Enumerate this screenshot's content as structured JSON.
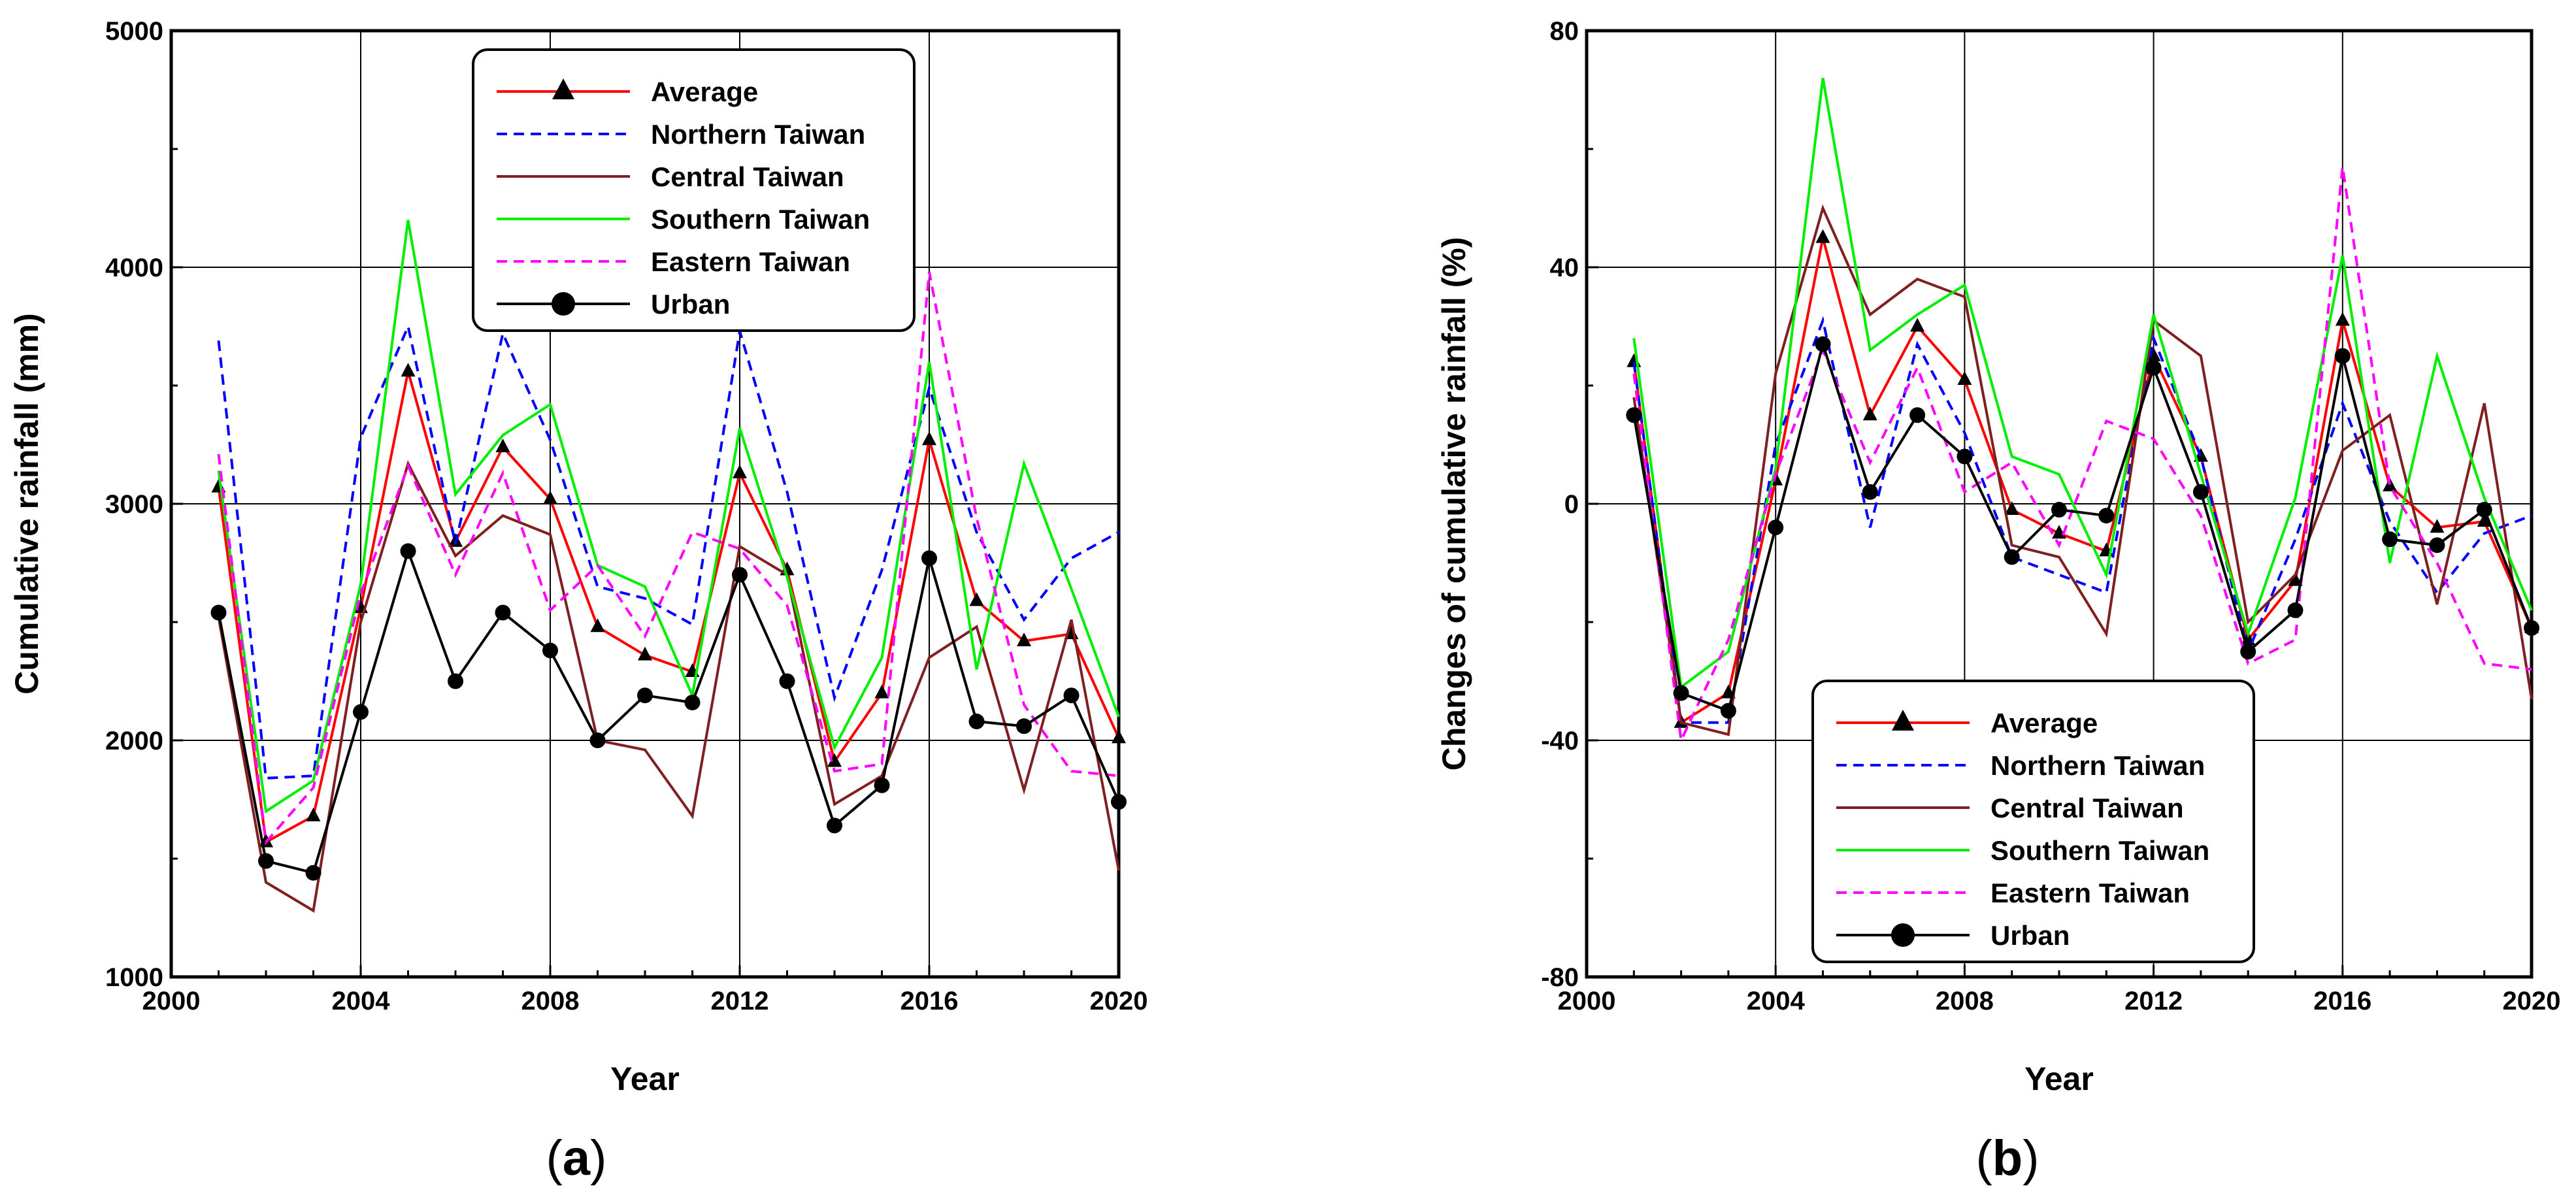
{
  "panels": [
    {
      "id": "a",
      "caption": "(a)",
      "caption_letter": "a",
      "caption_open": "(",
      "caption_close": ")",
      "xlabel": "Year",
      "ylabel": "Cumulative rainfall (mm)",
      "x_ticks": [
        "2000",
        "2004",
        "2008",
        "2012",
        "2016",
        "2020"
      ],
      "y_ticks": [
        "1000",
        "2000",
        "3000",
        "4000",
        "5000"
      ]
    },
    {
      "id": "b",
      "caption": "(b)",
      "caption_letter": "b",
      "caption_open": "(",
      "caption_close": ")",
      "xlabel": "Year",
      "ylabel": "Changes of cumulative rainfall (%)",
      "x_ticks": [
        "2000",
        "2004",
        "2008",
        "2012",
        "2016",
        "2020"
      ],
      "y_ticks": [
        "-80",
        "-40",
        "0",
        "40",
        "80"
      ]
    }
  ],
  "colors": {
    "average": "#ff0000",
    "northern": "#0000ff",
    "central": "#7f1f1f",
    "southern": "#00ee00",
    "eastern": "#ff00ff",
    "urban": "#000000"
  },
  "chart_data": [
    {
      "type": "line",
      "panel": "a",
      "title": "",
      "xlabel": "Year",
      "ylabel": "Cumulative rainfall (mm)",
      "xlim": [
        2000,
        2020
      ],
      "ylim": [
        1000,
        5000
      ],
      "x": [
        2001,
        2002,
        2003,
        2004,
        2005,
        2006,
        2007,
        2008,
        2009,
        2010,
        2011,
        2012,
        2013,
        2014,
        2015,
        2016,
        2017,
        2018,
        2019,
        2020
      ],
      "legend_position": "top-center",
      "series": [
        {
          "key": "average",
          "name": "Average",
          "style": "solid",
          "marker": "triangle",
          "values": [
            3070,
            1570,
            1680,
            2560,
            3560,
            2840,
            3240,
            3020,
            2480,
            2360,
            2290,
            3130,
            2720,
            1910,
            2200,
            3270,
            2590,
            2420,
            2450,
            2010
          ]
        },
        {
          "key": "northern",
          "name": "Northern Taiwan",
          "style": "dashed",
          "marker": "none",
          "values": [
            3690,
            1840,
            1850,
            3280,
            3750,
            2830,
            3720,
            3270,
            2650,
            2600,
            2490,
            3730,
            3050,
            2180,
            2720,
            3490,
            2880,
            2510,
            2770,
            2880
          ]
        },
        {
          "key": "central",
          "name": "Central Taiwan",
          "style": "solid",
          "marker": "none",
          "values": [
            2520,
            1400,
            1280,
            2500,
            3170,
            2780,
            2950,
            2870,
            2000,
            1960,
            1680,
            2820,
            2700,
            1730,
            1850,
            2350,
            2480,
            1790,
            2510,
            1450
          ]
        },
        {
          "key": "southern",
          "name": "Southern Taiwan",
          "style": "solid",
          "marker": "none",
          "values": [
            3140,
            1700,
            1830,
            2660,
            4200,
            3040,
            3290,
            3420,
            2740,
            2650,
            2190,
            3320,
            2690,
            1970,
            2350,
            3600,
            2300,
            3170,
            2640,
            2100
          ]
        },
        {
          "key": "eastern",
          "name": "Eastern Taiwan",
          "style": "dashed",
          "marker": "none",
          "values": [
            3210,
            1570,
            1800,
            2620,
            3160,
            2700,
            3130,
            2550,
            2740,
            2440,
            2880,
            2810,
            2570,
            1870,
            1900,
            3980,
            2940,
            2150,
            1870,
            1850
          ]
        },
        {
          "key": "urban",
          "name": "Urban",
          "style": "solid",
          "marker": "circle",
          "values": [
            2540,
            1490,
            1440,
            2120,
            2800,
            2250,
            2540,
            2380,
            2000,
            2190,
            2160,
            2700,
            2250,
            1640,
            1810,
            2770,
            2080,
            2060,
            2190,
            1740
          ]
        }
      ]
    },
    {
      "type": "line",
      "panel": "b",
      "title": "",
      "xlabel": "Year",
      "ylabel": "Changes of cumulative rainfall (%)",
      "xlim": [
        2000,
        2020
      ],
      "ylim": [
        -80,
        80
      ],
      "x": [
        2001,
        2002,
        2003,
        2004,
        2005,
        2006,
        2007,
        2008,
        2009,
        2010,
        2011,
        2012,
        2013,
        2014,
        2015,
        2016,
        2017,
        2018,
        2019,
        2020
      ],
      "legend_position": "bottom-center",
      "series": [
        {
          "key": "average",
          "name": "Average",
          "style": "solid",
          "marker": "triangle",
          "values": [
            24,
            -37,
            -32,
            4,
            45,
            15,
            30,
            21,
            -1,
            -5,
            -8,
            25,
            8,
            -23,
            -13,
            31,
            3,
            -4,
            -3,
            -21
          ]
        },
        {
          "key": "northern",
          "name": "Northern Taiwan",
          "style": "dashed",
          "marker": "none",
          "values": [
            24,
            -37,
            -37,
            10,
            31,
            -4,
            27,
            12,
            -9,
            -12,
            -15,
            28,
            8,
            -25,
            -6,
            17,
            -3,
            -15,
            -5,
            -2
          ]
        },
        {
          "key": "central",
          "name": "Central Taiwan",
          "style": "solid",
          "marker": "none",
          "values": [
            18,
            -37,
            -39,
            22,
            50,
            32,
            38,
            35,
            -7,
            -9,
            -22,
            31,
            25,
            -20,
            -12,
            9,
            15,
            -17,
            17,
            -33
          ]
        },
        {
          "key": "southern",
          "name": "Southern Taiwan",
          "style": "solid",
          "marker": "none",
          "values": [
            28,
            -31,
            -25,
            6,
            72,
            26,
            32,
            37,
            8,
            5,
            -12,
            32,
            5,
            -22,
            1,
            42,
            -10,
            25,
            1,
            -18
          ]
        },
        {
          "key": "eastern",
          "name": "Eastern Taiwan",
          "style": "dashed",
          "marker": "none",
          "values": [
            22,
            -40,
            -23,
            5,
            26,
            7,
            23,
            2,
            7,
            -7,
            14,
            11,
            -2,
            -27,
            -23,
            57,
            3,
            -10,
            -27,
            -28
          ]
        },
        {
          "key": "urban",
          "name": "Urban",
          "style": "solid",
          "marker": "circle",
          "values": [
            15,
            -32,
            -35,
            -4,
            27,
            2,
            15,
            8,
            -9,
            -1,
            -2,
            23,
            2,
            -25,
            -18,
            25,
            -6,
            -7,
            -1,
            -21
          ]
        }
      ]
    }
  ]
}
